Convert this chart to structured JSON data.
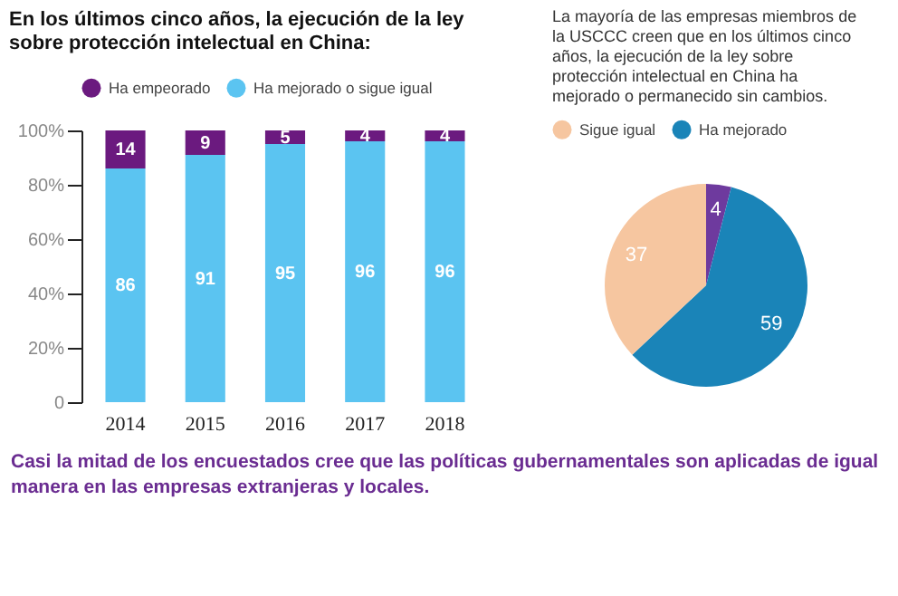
{
  "chart_data": [
    {
      "type": "bar",
      "title": "En los últimos cinco años, la ejecución de la ley sobre protección intelectual en China:",
      "categories": [
        "2014",
        "2015",
        "2016",
        "2017",
        "2018"
      ],
      "stacked": true,
      "series": [
        {
          "name": "Ha mejorado o sigue igual",
          "color": "#5bc4f1",
          "values": [
            86,
            91,
            95,
            96,
            96
          ]
        },
        {
          "name": "Ha empeorado",
          "color": "#6b1a7f",
          "values": [
            14,
            9,
            5,
            4,
            4
          ]
        }
      ],
      "ylim": [
        0,
        100
      ],
      "yticks": [
        {
          "value": 0,
          "label": "0"
        },
        {
          "value": 20,
          "label": "20%"
        },
        {
          "value": 40,
          "label": "40%"
        },
        {
          "value": 60,
          "label": "60%"
        },
        {
          "value": 80,
          "label": "80%"
        },
        {
          "value": 100,
          "label": "100%"
        }
      ],
      "data_labels": true,
      "grid": false,
      "legend": "top",
      "annotations": [
        "Casi la mitad de los encuestados cree que las políticas gubernamentales son aplicadas de igual manera en las empresas extranjeras y locales."
      ]
    },
    {
      "type": "pie",
      "title": "La mayoría de las empresas miembros de la USCCC creen que en los últimos cinco años, la ejecución de la ley sobre protección intelectual en China ha mejorado o permanecido sin cambios.",
      "categories": [
        null,
        "Ha mejorado",
        "Sigue igual"
      ],
      "values": [
        4,
        59,
        37
      ],
      "colors": [
        "#6e3a9e",
        "#1a84b8",
        "#f6c6a0"
      ],
      "data_labels": true,
      "legend": "top"
    }
  ]
}
